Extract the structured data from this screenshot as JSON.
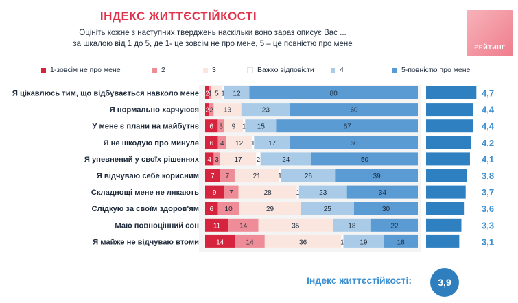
{
  "header": {
    "title": "ІНДЕКС ЖИТТЄСТІЙКОСТІ",
    "subtitle_line1": "Оцініть кожне з наступних тверджень наскільки воно зараз описує Вас ...",
    "subtitle_line2": "за шкалою від 1 до 5, де 1- це зовсім не про мене, 5 – це повністю про мене"
  },
  "logo": {
    "text": "РЕЙТИНГ"
  },
  "colors": {
    "s1": "#d6243e",
    "s2": "#ee8c97",
    "s3": "#fbe6df",
    "hard": "#ffffff",
    "s4": "#a9cbe8",
    "s5": "#5a9bd3",
    "index_bar": "#2f80c0",
    "index_text": "#3b8fd0"
  },
  "chart_data": {
    "type": "stacked-bar",
    "series": [
      {
        "name": "1-зовсім не про мене",
        "key": "s1",
        "values": [
          2,
          2,
          6,
          6,
          4,
          7,
          9,
          6,
          11,
          14
        ]
      },
      {
        "name": "2",
        "key": "s2",
        "values": [
          1,
          2,
          3,
          4,
          3,
          7,
          7,
          10,
          14,
          14
        ]
      },
      {
        "name": "3",
        "key": "s3",
        "values": [
          5,
          13,
          9,
          12,
          17,
          21,
          28,
          29,
          35,
          36
        ]
      },
      {
        "name": "Важко відповісти",
        "key": "hard",
        "values": [
          1,
          0,
          1,
          1,
          2,
          1,
          1,
          0,
          0,
          1
        ]
      },
      {
        "name": "4",
        "key": "s4",
        "values": [
          12,
          23,
          15,
          17,
          24,
          26,
          23,
          25,
          18,
          19
        ]
      },
      {
        "name": "5-повністю про мене",
        "key": "s5",
        "values": [
          80,
          60,
          67,
          60,
          50,
          39,
          34,
          30,
          22,
          16
        ]
      }
    ],
    "categories": [
      "Я цікавлюсь тим, що відбувається навколо мене",
      "Я нормально харчуюся",
      "У мене є плани на майбутнє",
      "Я не шкодую про минуле",
      "Я упевнений у своїх рішеннях",
      "Я відчуваю себе корисним",
      "Складнощі мене не лякають",
      "Слідкую за своїм здоров'ям",
      "Маю повноцінний сон",
      "Я майже не відчуваю втоми"
    ],
    "value_labels": [
      [
        "2",
        "1",
        "5",
        "1",
        "12",
        "80"
      ],
      [
        "2",
        "2",
        "13",
        "",
        "23",
        "60"
      ],
      [
        "6",
        "3",
        "9",
        "1",
        "15",
        "67"
      ],
      [
        "6",
        "4",
        "12",
        "1",
        "17",
        "60"
      ],
      [
        "4",
        "3",
        "17",
        "2",
        "24",
        "50"
      ],
      [
        "7",
        "7",
        "21",
        "1",
        "26",
        "39"
      ],
      [
        "9",
        "7",
        "28",
        "1",
        "23",
        "34"
      ],
      [
        "6",
        "10",
        "29",
        "",
        "25",
        "30"
      ],
      [
        "11",
        "14",
        "35",
        "",
        "18",
        "22"
      ],
      [
        "14",
        "14",
        "36",
        "1",
        "19",
        "16"
      ]
    ],
    "index_values": [
      4.7,
      4.4,
      4.4,
      4.2,
      4.1,
      3.8,
      3.7,
      3.6,
      3.3,
      3.1
    ],
    "index_labels": [
      "4,7",
      "4,4",
      "4,4",
      "4,2",
      "4,1",
      "3,8",
      "3,7",
      "3,6",
      "3,3",
      "3,1"
    ],
    "index_scale_max": 5
  },
  "footer": {
    "label": "Індекс життєстійкості:",
    "value": "3,9"
  }
}
